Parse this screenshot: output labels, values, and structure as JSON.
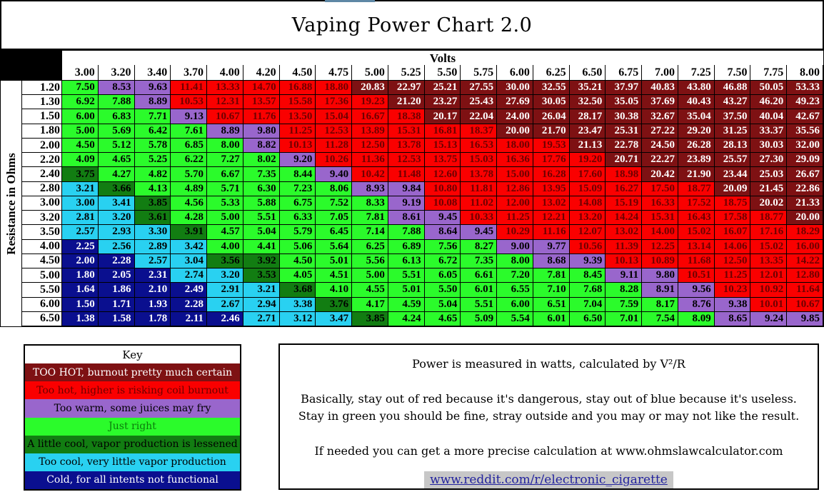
{
  "title": "Vaping Power Chart 2.0",
  "chart_data": {
    "type": "heatmap",
    "title": "Vaping Power Chart 2.0",
    "xlabel": "Volts",
    "ylabel": "Resistance in Ohms",
    "formula": "watts = V²/R",
    "x_volts": [
      3.0,
      3.2,
      3.4,
      3.7,
      4.0,
      4.2,
      4.5,
      4.75,
      5.0,
      5.25,
      5.5,
      5.75,
      6.0,
      6.25,
      6.5,
      6.75,
      7.0,
      7.25,
      7.5,
      7.75,
      8.0
    ],
    "y_ohms": [
      1.2,
      1.3,
      1.5,
      1.8,
      2.0,
      2.2,
      2.4,
      2.8,
      3.0,
      3.2,
      3.5,
      4.0,
      4.5,
      5.0,
      5.5,
      6.0,
      6.5
    ],
    "values_watts": [
      [
        7.5,
        8.53,
        9.63,
        11.41,
        13.33,
        14.7,
        16.88,
        18.8,
        20.83,
        22.97,
        25.21,
        27.55,
        30.0,
        32.55,
        35.21,
        37.97,
        40.83,
        43.8,
        46.88,
        50.05,
        53.33
      ],
      [
        6.92,
        7.88,
        8.89,
        10.53,
        12.31,
        13.57,
        15.58,
        17.36,
        19.23,
        21.2,
        23.27,
        25.43,
        27.69,
        30.05,
        32.5,
        35.05,
        37.69,
        40.43,
        43.27,
        46.2,
        49.23
      ],
      [
        6.0,
        6.83,
        7.71,
        9.13,
        10.67,
        11.76,
        13.5,
        15.04,
        16.67,
        18.38,
        20.17,
        22.04,
        24.0,
        26.04,
        28.17,
        30.38,
        32.67,
        35.04,
        37.5,
        40.04,
        42.67
      ],
      [
        5.0,
        5.69,
        6.42,
        7.61,
        8.89,
        9.8,
        11.25,
        12.53,
        13.89,
        15.31,
        16.81,
        18.37,
        20.0,
        21.7,
        23.47,
        25.31,
        27.22,
        29.2,
        31.25,
        33.37,
        35.56
      ],
      [
        4.5,
        5.12,
        5.78,
        6.85,
        8.0,
        8.82,
        10.13,
        11.28,
        12.5,
        13.78,
        15.13,
        16.53,
        18.0,
        19.53,
        21.13,
        22.78,
        24.5,
        26.28,
        28.13,
        30.03,
        32.0
      ],
      [
        4.09,
        4.65,
        5.25,
        6.22,
        7.27,
        8.02,
        9.2,
        10.26,
        11.36,
        12.53,
        13.75,
        15.03,
        16.36,
        17.76,
        19.2,
        20.71,
        22.27,
        23.89,
        25.57,
        27.3,
        29.09
      ],
      [
        3.75,
        4.27,
        4.82,
        5.7,
        6.67,
        7.35,
        8.44,
        9.4,
        10.42,
        11.48,
        12.6,
        13.78,
        15.0,
        16.28,
        17.6,
        18.98,
        20.42,
        21.9,
        23.44,
        25.03,
        26.67
      ],
      [
        3.21,
        3.66,
        4.13,
        4.89,
        5.71,
        6.3,
        7.23,
        8.06,
        8.93,
        9.84,
        10.8,
        11.81,
        12.86,
        13.95,
        15.09,
        16.27,
        17.5,
        18.77,
        20.09,
        21.45,
        22.86
      ],
      [
        3.0,
        3.41,
        3.85,
        4.56,
        5.33,
        5.88,
        6.75,
        7.52,
        8.33,
        9.19,
        10.08,
        11.02,
        12.0,
        13.02,
        14.08,
        15.19,
        16.33,
        17.52,
        18.75,
        20.02,
        21.33
      ],
      [
        2.81,
        3.2,
        3.61,
        4.28,
        5.0,
        5.51,
        6.33,
        7.05,
        7.81,
        8.61,
        9.45,
        10.33,
        11.25,
        12.21,
        13.2,
        14.24,
        15.31,
        16.43,
        17.58,
        18.77,
        20.0
      ],
      [
        2.57,
        2.93,
        3.3,
        3.91,
        4.57,
        5.04,
        5.79,
        6.45,
        7.14,
        7.88,
        8.64,
        9.45,
        10.29,
        11.16,
        12.07,
        13.02,
        14.0,
        15.02,
        16.07,
        17.16,
        18.29
      ],
      [
        2.25,
        2.56,
        2.89,
        3.42,
        4.0,
        4.41,
        5.06,
        5.64,
        6.25,
        6.89,
        7.56,
        8.27,
        9.0,
        9.77,
        10.56,
        11.39,
        12.25,
        13.14,
        14.06,
        15.02,
        16.0
      ],
      [
        2.0,
        2.28,
        2.57,
        3.04,
        3.56,
        3.92,
        4.5,
        5.01,
        5.56,
        6.13,
        6.72,
        7.35,
        8.0,
        8.68,
        9.39,
        10.13,
        10.89,
        11.68,
        12.5,
        13.35,
        14.22
      ],
      [
        1.8,
        2.05,
        2.31,
        2.74,
        3.2,
        3.53,
        4.05,
        4.51,
        5.0,
        5.51,
        6.05,
        6.61,
        7.2,
        7.81,
        8.45,
        9.11,
        9.8,
        10.51,
        11.25,
        12.01,
        12.8
      ],
      [
        1.64,
        1.86,
        2.1,
        2.49,
        2.91,
        3.21,
        3.68,
        4.1,
        4.55,
        5.01,
        5.5,
        6.01,
        6.55,
        7.1,
        7.68,
        8.28,
        8.91,
        9.56,
        10.23,
        10.92,
        11.64
      ],
      [
        1.5,
        1.71,
        1.93,
        2.28,
        2.67,
        2.94,
        3.38,
        3.76,
        4.17,
        4.59,
        5.04,
        5.51,
        6.0,
        6.51,
        7.04,
        7.59,
        8.17,
        8.76,
        9.38,
        10.01,
        10.67
      ],
      [
        1.38,
        1.58,
        1.78,
        2.11,
        2.46,
        2.71,
        3.12,
        3.47,
        3.85,
        4.24,
        4.65,
        5.09,
        5.54,
        6.01,
        6.5,
        7.01,
        7.54,
        8.09,
        8.65,
        9.24,
        9.85
      ]
    ],
    "color_bands": [
      {
        "name": "cold",
        "max_watts": 2.5,
        "bg": "#0A0F8F",
        "text": "#FFFFFF"
      },
      {
        "name": "too-cool",
        "max_watts": 3.5,
        "bg": "#29D1F1",
        "text": "#000000"
      },
      {
        "name": "little-cool",
        "max_watts": 4.0,
        "bg": "#127D12",
        "text": "#000000"
      },
      {
        "name": "just-right",
        "max_watts": 8.5,
        "bg": "#2BFB2B",
        "text": "#000000"
      },
      {
        "name": "too-warm",
        "max_watts": 10.0,
        "bg": "#9966CC",
        "text": "#000000"
      },
      {
        "name": "too-hot",
        "max_watts": 20.0,
        "bg": "#FA0000",
        "text": "#6E0000"
      },
      {
        "name": "way-too-hot",
        "max_watts": null,
        "bg": "#7E1113",
        "text": "#FFFFFF"
      }
    ]
  },
  "key": {
    "title": "Key",
    "entries": [
      {
        "label": "TOO HOT, burnout pretty much certain",
        "bg": "#7E1113",
        "text": "#FFFFFF"
      },
      {
        "label": "Too hot, higher is risking coil burnout",
        "bg": "#FA0000",
        "text": "#6E0000"
      },
      {
        "label": "Too warm, some juices may fry",
        "bg": "#9966CC",
        "text": "#000000"
      },
      {
        "label": "Just right",
        "bg": "#2BFB2B",
        "text": "#0B7B0B"
      },
      {
        "label": "A little cool, vapor production is lessened",
        "bg": "#127D12",
        "text": "#000000"
      },
      {
        "label": "Too cool, very little vapor production",
        "bg": "#29D1F1",
        "text": "#000000"
      },
      {
        "label": "Cold, for all intents not functional",
        "bg": "#0A0F8F",
        "text": "#FFFFFF"
      }
    ]
  },
  "info": {
    "line1": "Power is measured in watts, calculated by V²/R",
    "line2": "Basically, stay out of red because it's dangerous, stay out of blue because it's useless.",
    "line3": "Stay in green you should be fine, stray outside and you may or may not like the result.",
    "line4": "If needed you can get a more precise calculation at www.ohmslawcalculator.com",
    "link_label": "www.reddit.com/r/electronic_cigarette"
  }
}
